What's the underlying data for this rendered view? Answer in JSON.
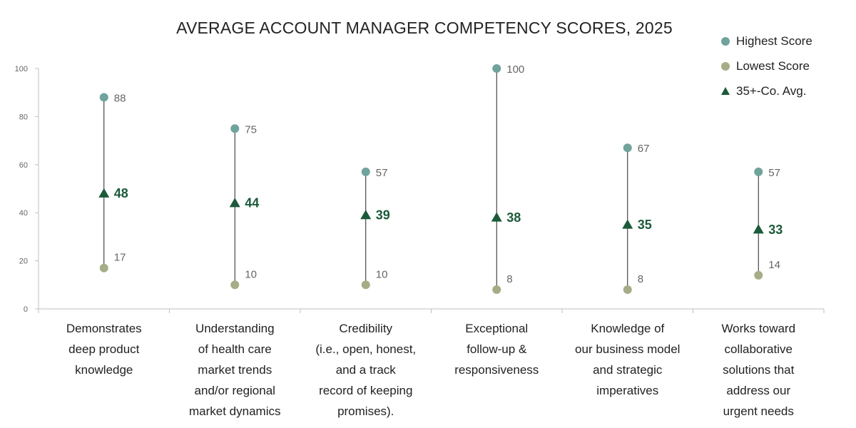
{
  "chart_data": {
    "type": "scatter",
    "title": "AVERAGE ACCOUNT MANAGER COMPETENCY SCORES, 2025",
    "xlabel": "",
    "ylabel": "",
    "ylim": [
      0,
      100
    ],
    "yticks": [
      0,
      20,
      40,
      60,
      80,
      100
    ],
    "grid": false,
    "legend_position": "top-right",
    "categories": [
      [
        "Demonstrates",
        "deep product",
        "knowledge"
      ],
      [
        "Understanding",
        "of health care",
        "market trends",
        "and/or regional",
        "market dynamics"
      ],
      [
        "Credibility",
        "(i.e., open, honest,",
        "and a track",
        "record of keeping",
        "promises)."
      ],
      [
        "Exceptional",
        "follow-up &",
        "responsiveness"
      ],
      [
        "Knowledge of",
        "our business model",
        "and strategic",
        "imperatives"
      ],
      [
        "Works toward",
        "collaborative",
        "solutions that",
        "address our",
        "urgent needs"
      ]
    ],
    "series": [
      {
        "name": "Highest Score",
        "marker": "circle",
        "color": "#6fa39b",
        "values": [
          88,
          75,
          57,
          100,
          67,
          57
        ]
      },
      {
        "name": "Lowest Score",
        "marker": "circle",
        "color": "#a5ad87",
        "values": [
          17,
          10,
          10,
          8,
          8,
          14
        ]
      },
      {
        "name": "35+-Co. Avg.",
        "marker": "triangle",
        "color": "#1b5a3a",
        "values": [
          48,
          44,
          39,
          38,
          35,
          33
        ]
      }
    ]
  }
}
